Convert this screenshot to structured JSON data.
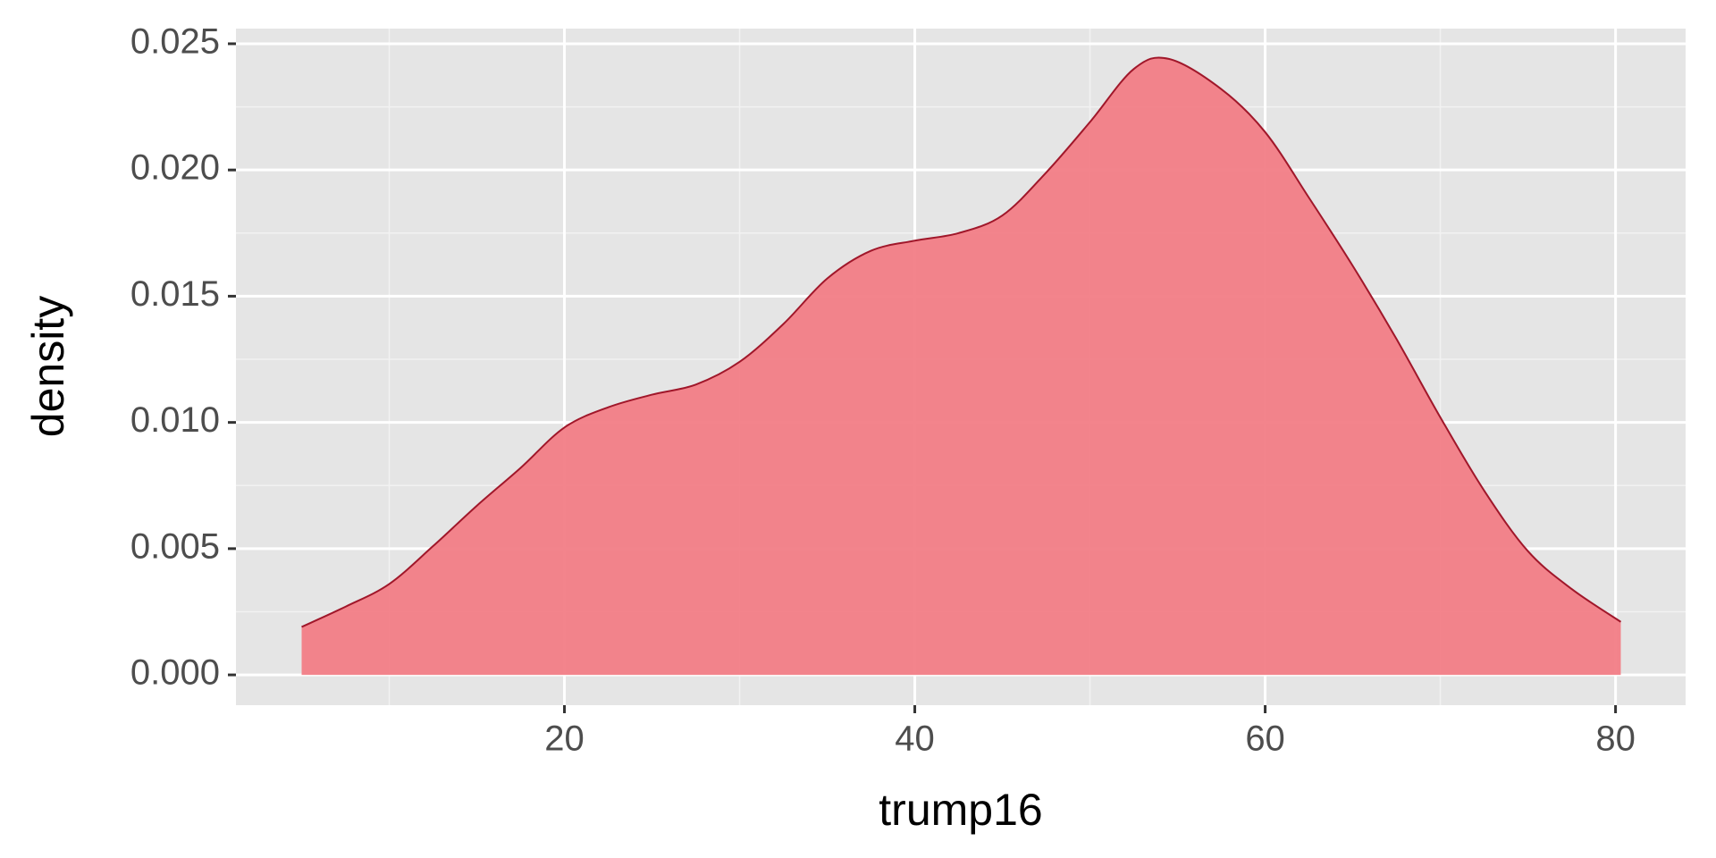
{
  "chart_data": {
    "type": "density",
    "xlabel": "trump16",
    "ylabel": "density",
    "x": [
      5,
      7.5,
      10,
      12.5,
      15,
      17.5,
      20,
      22.5,
      25,
      27.5,
      30,
      32.5,
      35,
      37.5,
      40,
      42.5,
      45,
      47.5,
      50,
      52.5,
      54.5,
      57.5,
      60,
      62.5,
      65,
      67.5,
      70,
      72.5,
      75,
      77.5,
      80.3
    ],
    "y": [
      0.0019,
      0.0027,
      0.0036,
      0.0051,
      0.0067,
      0.0082,
      0.0098,
      0.0106,
      0.0111,
      0.0115,
      0.0124,
      0.0139,
      0.0157,
      0.0168,
      0.0172,
      0.0175,
      0.0182,
      0.0199,
      0.0219,
      0.024,
      0.0244,
      0.0232,
      0.0215,
      0.0189,
      0.0162,
      0.0133,
      0.0102,
      0.0073,
      0.0049,
      0.0034,
      0.0021
    ],
    "color": "#f27d86",
    "line_color": "#a0172a",
    "panel_color": "#e5e5e5",
    "xlim": [
      1.25,
      84
    ],
    "ylim": [
      -0.0012,
      0.0256
    ],
    "xticks": [
      20,
      40,
      60,
      80
    ],
    "yticks": [
      {
        "value": 0,
        "label": "0.000"
      },
      {
        "value": 0.005,
        "label": "0.005"
      },
      {
        "value": 0.01,
        "label": "0.010"
      },
      {
        "value": 0.015,
        "label": "0.015"
      },
      {
        "value": 0.02,
        "label": "0.020"
      },
      {
        "value": 0.025,
        "label": "0.025"
      }
    ],
    "xminor": [
      10,
      30,
      50,
      70
    ],
    "yminor": [
      0.0025,
      0.0075,
      0.0125,
      0.0175,
      0.0225
    ],
    "grid": true
  }
}
